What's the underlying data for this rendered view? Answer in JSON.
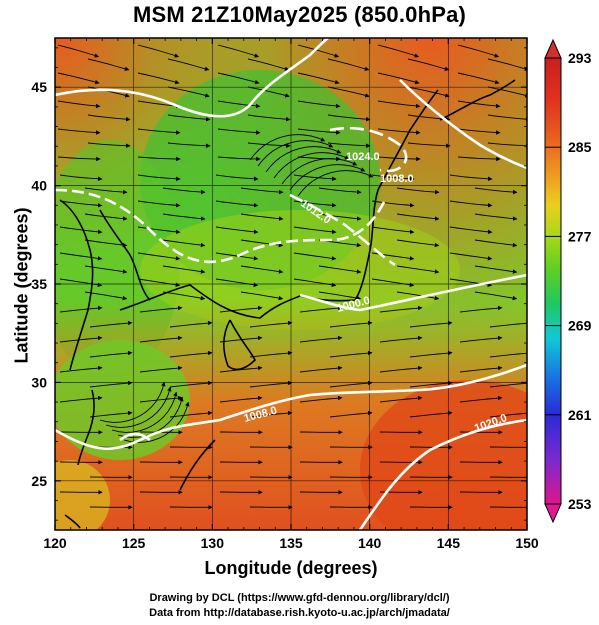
{
  "title": "MSM 21Z10May2025 (850.0hPa)",
  "axes": {
    "xlabel": "Longitude (degrees)",
    "ylabel": "Latitude  (degrees)",
    "x_range": [
      120,
      150
    ],
    "y_range": [
      22.5,
      47.5
    ],
    "x_ticks": [
      "120",
      "125",
      "130",
      "135",
      "140",
      "145",
      "150"
    ],
    "y_ticks": [
      "25",
      "30",
      "35",
      "40",
      "45"
    ]
  },
  "colorbar": {
    "min": 253,
    "max": 293,
    "labels": [
      "293",
      "285",
      "277",
      "269",
      "261",
      "253"
    ],
    "colors": [
      "#e0158a",
      "#7a2ad0",
      "#2a2ad8",
      "#1870e0",
      "#10c8d8",
      "#20c860",
      "#60d020",
      "#a8d818",
      "#e8d020",
      "#f09820",
      "#e86020",
      "#e03020",
      "#c82020"
    ]
  },
  "contours": {
    "color": "#ffffff",
    "labels": [
      "1024.0",
      "1012.0",
      "1008.0",
      "1020.0",
      "1000.0",
      "1008.0"
    ]
  },
  "credits": {
    "line1": "Drawing by DCL (https://www.gfd-dennou.org/library/dcl/)",
    "line2": "Data from http://database.rish.kyoto-u.ac.jp/arch/jmadata/"
  }
}
